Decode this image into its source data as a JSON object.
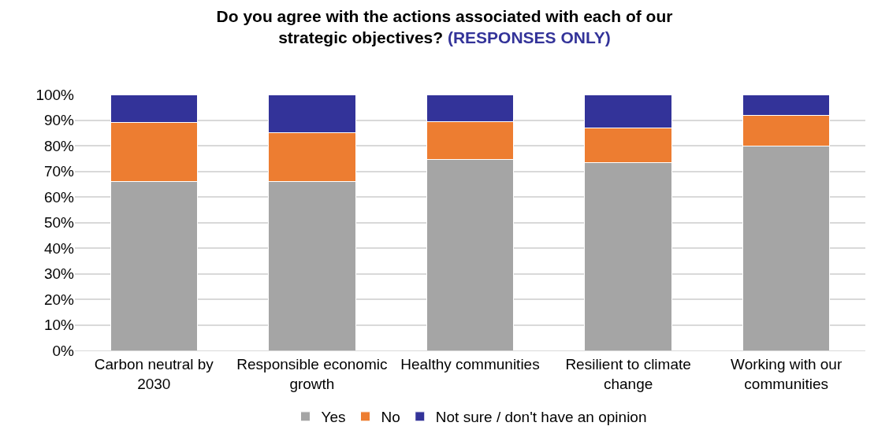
{
  "chart_data": {
    "type": "bar",
    "stacked": true,
    "title": "Do you agree with the actions associated with each of our strategic objectives?",
    "subtitle": "(RESPONSES ONLY)",
    "categories": [
      "Carbon neutral by 2030",
      "Responsible economic growth",
      "Healthy communities",
      "Resilient to climate change",
      "Working with our communities"
    ],
    "series": [
      {
        "name": "Yes",
        "color": "#a5a5a5",
        "values": [
          66,
          66,
          74.5,
          73.5,
          80
        ]
      },
      {
        "name": "No",
        "color": "#ed7d31",
        "values": [
          23,
          19,
          15,
          13.5,
          12
        ]
      },
      {
        "name": "Not sure / don't have an opinion",
        "color": "#333399",
        "values": [
          11,
          15,
          10.5,
          13,
          8
        ]
      }
    ],
    "ylim": [
      0,
      100
    ],
    "yticks": [
      {
        "value": 0,
        "label": "0%"
      },
      {
        "value": 10,
        "label": "10%"
      },
      {
        "value": 20,
        "label": "20%"
      },
      {
        "value": 30,
        "label": "30%"
      },
      {
        "value": 40,
        "label": "40%"
      },
      {
        "value": 50,
        "label": "50%"
      },
      {
        "value": 60,
        "label": "60%"
      },
      {
        "value": 70,
        "label": "70%"
      },
      {
        "value": 80,
        "label": "80%"
      },
      {
        "value": 90,
        "label": "90%"
      },
      {
        "value": 100,
        "label": "100%"
      }
    ],
    "grid": "y",
    "legend": "bottom"
  }
}
